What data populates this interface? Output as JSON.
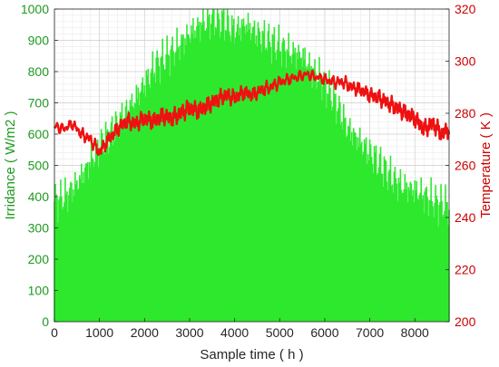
{
  "chart_data": {
    "type": "bar",
    "title": "",
    "xlabel": "Sample time ( h )",
    "ylabel_left": "Irridance ( W/m2 )",
    "ylabel_right": "Temperature ( K )",
    "xlim": [
      0,
      8760
    ],
    "ylim_left": [
      0,
      1000
    ],
    "ylim_right": [
      200,
      320
    ],
    "grid": true,
    "x_ticks": [
      "0",
      "1000",
      "2000",
      "3000",
      "4000",
      "5000",
      "6000",
      "7000",
      "8000"
    ],
    "y_left_ticks": [
      "0",
      "100",
      "200",
      "300",
      "400",
      "500",
      "600",
      "700",
      "800",
      "900",
      "1000"
    ],
    "y_right_ticks": [
      "200",
      "220",
      "240",
      "260",
      "280",
      "300",
      "320"
    ],
    "colors": {
      "irradiance": "#2ee82e",
      "temperature": "#ee1111",
      "left_axis_text": "#1f9a1f",
      "right_axis_text": "#cc0000"
    },
    "series": [
      {
        "axis": "left",
        "kind": "bar",
        "x": [
          0,
          250,
          500,
          750,
          1000,
          1250,
          1500,
          1750,
          2000,
          2250,
          2500,
          2750,
          3000,
          3250,
          3500,
          3750,
          4000,
          4250,
          4500,
          4750,
          5000,
          5250,
          5500,
          5750,
          6000,
          6250,
          6500,
          6750,
          7000,
          7250,
          7500,
          7750,
          8000,
          8250,
          8500,
          8760
        ],
        "values": [
          385,
          400,
          440,
          500,
          560,
          600,
          650,
          700,
          760,
          820,
          850,
          880,
          920,
          950,
          970,
          960,
          930,
          950,
          920,
          900,
          880,
          860,
          850,
          800,
          760,
          700,
          620,
          580,
          540,
          500,
          460,
          430,
          420,
          400,
          380,
          370
        ]
      },
      {
        "axis": "right",
        "kind": "line",
        "x": [
          0,
          200,
          400,
          600,
          800,
          1000,
          1200,
          1400,
          1600,
          1800,
          2000,
          2200,
          2400,
          2600,
          2800,
          3000,
          3200,
          3400,
          3600,
          3800,
          4000,
          4200,
          4400,
          4600,
          4800,
          5000,
          5200,
          5400,
          5600,
          5800,
          6000,
          6200,
          6400,
          6600,
          6800,
          7000,
          7200,
          7400,
          7600,
          7800,
          8000,
          8200,
          8400,
          8600,
          8760
        ],
        "values": [
          275,
          274,
          276,
          272,
          270,
          265,
          270,
          274,
          277,
          276,
          278,
          277,
          279,
          278,
          280,
          282,
          281,
          283,
          285,
          287,
          286,
          288,
          287,
          289,
          290,
          292,
          293,
          294,
          295,
          294,
          293,
          292,
          292,
          290,
          289,
          287,
          286,
          284,
          282,
          280,
          278,
          274,
          276,
          272,
          274
        ]
      }
    ]
  }
}
